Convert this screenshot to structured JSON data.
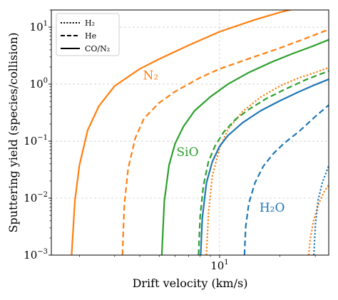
{
  "chart_data": {
    "type": "line",
    "xlabel": "Drift velocity (km/s)",
    "ylabel": "Sputtering yield (species/collision)",
    "xscale": "log",
    "yscale": "log",
    "xlim": [
      1.45,
      35
    ],
    "ylim": [
      0.001,
      20
    ],
    "grid": true,
    "x_tick_labels": [
      {
        "value": 10,
        "label": "10",
        "sup": "1"
      }
    ],
    "y_tick_labels": [
      {
        "value": 0.001,
        "label": "10",
        "sup": "−3"
      },
      {
        "value": 0.01,
        "label": "10",
        "sup": "−2"
      },
      {
        "value": 0.1,
        "label": "10",
        "sup": "−1"
      },
      {
        "value": 1,
        "label": "10",
        "sup": "0"
      },
      {
        "value": 10,
        "label": "10",
        "sup": "1"
      }
    ],
    "legend_position": "top-left",
    "legend": [
      {
        "label": "H₂",
        "dash": "dotted"
      },
      {
        "label": "He",
        "dash": "dashed"
      },
      {
        "label": "CO/N₂",
        "dash": "solid"
      }
    ],
    "annotations": [
      {
        "text": "N₂",
        "x": 4.15,
        "y": 1.2,
        "color": "#ff7f0e"
      },
      {
        "text": "SiO",
        "x": 6.1,
        "y": 0.055,
        "color": "#2ca02c"
      },
      {
        "text": "H₂O",
        "x": 15.8,
        "y": 0.0058,
        "color": "#1f77b4"
      }
    ],
    "colors": {
      "N2": "#ff7f0e",
      "SiO": "#2ca02c",
      "H2O": "#1f77b4"
    },
    "series": [
      {
        "target": "N₂",
        "projectile": "CO/N₂",
        "color": "#ff7f0e",
        "dash": "solid",
        "x": [
          1.83,
          1.9,
          2.0,
          2.2,
          2.5,
          3.0,
          4.0,
          5.0,
          7.0,
          10.0,
          15.0,
          20.0,
          25.0,
          30.0,
          35.0
        ],
        "y": [
          0.001,
          0.0089,
          0.0373,
          0.155,
          0.41,
          0.93,
          1.85,
          2.75,
          4.8,
          8.3,
          13.5,
          18.2,
          22,
          26,
          30
        ]
      },
      {
        "target": "N₂",
        "projectile": "He",
        "color": "#ff7f0e",
        "dash": "dashed",
        "x": [
          3.28,
          3.35,
          3.5,
          3.8,
          4.2,
          5.0,
          6.0,
          8.0,
          10.0,
          14.0,
          20.0,
          27.0,
          35.0
        ],
        "y": [
          0.001,
          0.0075,
          0.033,
          0.113,
          0.25,
          0.47,
          0.74,
          1.3,
          1.85,
          2.8,
          4.3,
          6.4,
          9.1
        ]
      },
      {
        "target": "N₂",
        "projectile": "H₂",
        "color": "#ff7f0e",
        "dash": "dotted",
        "x": [
          8.6,
          8.8,
          9.2,
          10.0,
          11.0,
          13.0,
          16.0,
          20.0,
          25.0,
          30.0,
          35.0
        ],
        "y": [
          0.001,
          0.0053,
          0.0245,
          0.075,
          0.16,
          0.33,
          0.59,
          0.93,
          1.3,
          1.6,
          1.95
        ]
      },
      {
        "target": "SiO",
        "projectile": "CO/N₂",
        "color": "#2ca02c",
        "dash": "solid",
        "x": [
          5.15,
          5.3,
          5.6,
          6.0,
          6.6,
          7.5,
          9.0,
          11.0,
          14.0,
          18.0,
          23.0,
          29.0,
          35.0
        ],
        "y": [
          0.001,
          0.0088,
          0.038,
          0.09,
          0.18,
          0.34,
          0.6,
          1.0,
          1.6,
          2.4,
          3.4,
          4.6,
          6.0
        ]
      },
      {
        "target": "SiO",
        "projectile": "He",
        "color": "#2ca02c",
        "dash": "dashed",
        "x": [
          7.85,
          8.0,
          8.3,
          8.8,
          9.5,
          10.5,
          12.0,
          14.0,
          17.0,
          21.0,
          27.0,
          35.0
        ],
        "y": [
          0.001,
          0.0048,
          0.0165,
          0.0435,
          0.083,
          0.145,
          0.24,
          0.36,
          0.55,
          0.8,
          1.2,
          1.7
        ]
      },
      {
        "target": "H₂O",
        "projectile": "CO/N₂",
        "color": "#1f77b4",
        "dash": "solid",
        "x": [
          8.05,
          8.2,
          8.6,
          9.2,
          10.0,
          11.0,
          13.0,
          16.0,
          20.0,
          25.0,
          30.0,
          35.0
        ],
        "y": [
          0.001,
          0.0045,
          0.0185,
          0.0435,
          0.081,
          0.125,
          0.21,
          0.34,
          0.51,
          0.74,
          0.98,
          1.22
        ]
      },
      {
        "target": "H₂O",
        "projectile": "He",
        "color": "#1f77b4",
        "dash": "dashed",
        "x": [
          13.3,
          13.5,
          14.0,
          15.0,
          16.5,
          18.5,
          21.0,
          25.0,
          30.0,
          35.0
        ],
        "y": [
          0.001,
          0.0032,
          0.0081,
          0.0185,
          0.036,
          0.06,
          0.092,
          0.15,
          0.27,
          0.43
        ]
      },
      {
        "target": "N₂",
        "projectile": "H₂",
        "color": "#ff7f0e",
        "dash": "dotted",
        "x": [
          27.8,
          28.3,
          29.5,
          31.0,
          33.0,
          35.0
        ],
        "y": [
          0.001,
          0.0019,
          0.0042,
          0.0075,
          0.0125,
          0.0172
        ]
      },
      {
        "target": "H₂O",
        "projectile": "H₂",
        "color": "#1f77b4",
        "dash": "dotted",
        "x": [
          29.5,
          30.0,
          31.0,
          32.5,
          34.0,
          35.0
        ],
        "y": [
          0.001,
          0.0033,
          0.0092,
          0.0185,
          0.0285,
          0.037
        ]
      }
    ]
  }
}
